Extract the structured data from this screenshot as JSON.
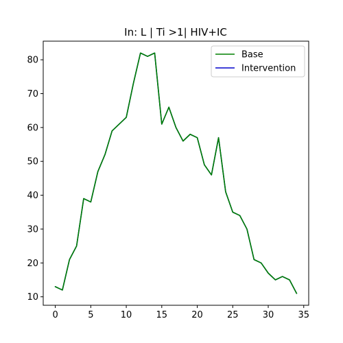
{
  "chart_data": {
    "type": "line",
    "title": "In: L | Ti >1| HIV+IC",
    "xlabel": "",
    "ylabel": "",
    "xlim": [
      -1.7,
      35.7
    ],
    "ylim": [
      7.5,
      85.5
    ],
    "xticks": [
      0,
      5,
      10,
      15,
      20,
      25,
      30,
      35
    ],
    "yticks": [
      10,
      20,
      30,
      40,
      50,
      60,
      70,
      80
    ],
    "legend_position": "top-right",
    "x": [
      0,
      1,
      2,
      3,
      4,
      5,
      6,
      7,
      8,
      9,
      10,
      11,
      12,
      13,
      14,
      15,
      16,
      17,
      18,
      19,
      20,
      21,
      22,
      23,
      24,
      25,
      26,
      27,
      28,
      29,
      30,
      31,
      32,
      33,
      34
    ],
    "series": [
      {
        "name": "Base",
        "color": "#008000",
        "values": [
          13,
          12,
          21,
          25,
          39,
          38,
          47,
          52,
          59,
          61,
          63,
          73,
          82,
          81,
          82,
          61,
          66,
          60,
          56,
          58,
          57,
          49,
          46,
          57,
          41,
          35,
          34,
          30,
          21,
          20,
          17,
          15,
          16,
          15,
          11
        ]
      },
      {
        "name": "Intervention",
        "color": "#0000cc",
        "values": [
          13,
          12,
          21,
          25,
          39,
          38,
          47,
          52,
          59,
          61,
          63,
          73,
          82,
          81,
          82,
          61,
          66,
          60,
          56,
          58,
          57,
          49,
          46,
          57,
          41,
          35,
          34,
          30,
          21,
          20,
          17,
          15,
          16,
          15,
          11
        ]
      }
    ]
  }
}
